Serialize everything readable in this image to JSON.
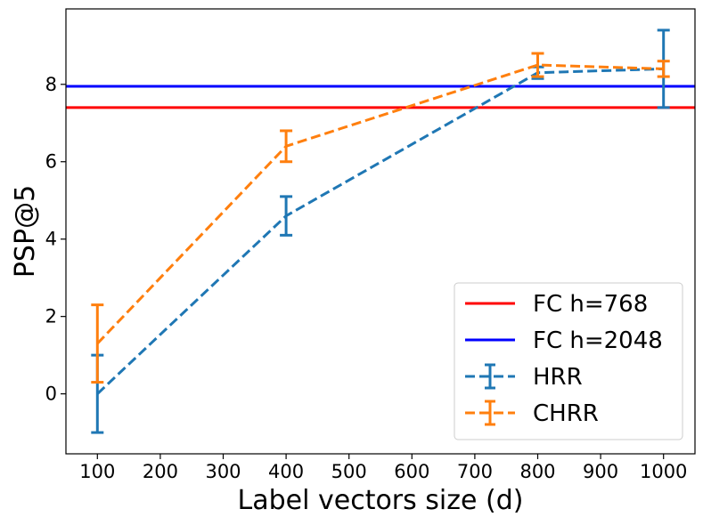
{
  "chart_data": {
    "type": "line",
    "title": "",
    "xlabel": "Label vectors size (d)",
    "ylabel": "PSP@5",
    "xlim": [
      50,
      1050
    ],
    "ylim": [
      -1.55,
      9.95
    ],
    "xticks": [
      100,
      200,
      300,
      400,
      500,
      600,
      700,
      800,
      900,
      1000
    ],
    "yticks": [
      0,
      2,
      4,
      6,
      8
    ],
    "grid": false,
    "legend_position": "bottom-right",
    "hlines": [
      {
        "name": "FC h=768",
        "y": 7.4,
        "color": "#ff0000"
      },
      {
        "name": "FC h=2048",
        "y": 7.95,
        "color": "#0000ff"
      }
    ],
    "series": [
      {
        "name": "HRR",
        "color": "#1f77b4",
        "x": [
          100,
          400,
          800,
          1000
        ],
        "values": [
          0.0,
          4.6,
          8.3,
          8.4
        ],
        "err": [
          1.0,
          0.5,
          0.15,
          1.0
        ]
      },
      {
        "name": "CHRR",
        "color": "#ff7f0e",
        "x": [
          100,
          400,
          800,
          1000
        ],
        "values": [
          1.3,
          6.4,
          8.5,
          8.4
        ],
        "err": [
          1.0,
          0.4,
          0.3,
          0.2
        ]
      }
    ]
  }
}
